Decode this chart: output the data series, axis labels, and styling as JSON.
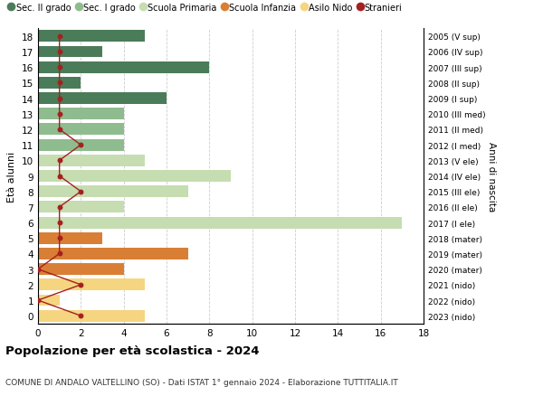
{
  "ages": [
    18,
    17,
    16,
    15,
    14,
    13,
    12,
    11,
    10,
    9,
    8,
    7,
    6,
    5,
    4,
    3,
    2,
    1,
    0
  ],
  "right_labels": [
    "2005 (V sup)",
    "2006 (IV sup)",
    "2007 (III sup)",
    "2008 (II sup)",
    "2009 (I sup)",
    "2010 (III med)",
    "2011 (II med)",
    "2012 (I med)",
    "2013 (V ele)",
    "2014 (IV ele)",
    "2015 (III ele)",
    "2016 (II ele)",
    "2017 (I ele)",
    "2018 (mater)",
    "2019 (mater)",
    "2020 (mater)",
    "2021 (nido)",
    "2022 (nido)",
    "2023 (nido)"
  ],
  "bar_values": [
    5,
    3,
    8,
    2,
    6,
    4,
    4,
    4,
    5,
    9,
    7,
    4,
    17,
    3,
    7,
    4,
    5,
    1,
    5
  ],
  "bar_colors": [
    "#4a7c59",
    "#4a7c59",
    "#4a7c59",
    "#4a7c59",
    "#4a7c59",
    "#8fbc8f",
    "#8fbc8f",
    "#8fbc8f",
    "#c5ddb0",
    "#c5ddb0",
    "#c5ddb0",
    "#c5ddb0",
    "#c5ddb0",
    "#d97f35",
    "#d97f35",
    "#d97f35",
    "#f5d580",
    "#f5d580",
    "#f5d580"
  ],
  "stranieri_values": [
    1,
    1,
    1,
    1,
    1,
    1,
    1,
    2,
    1,
    1,
    2,
    1,
    1,
    1,
    1,
    0,
    2,
    0,
    2
  ],
  "stranieri_color": "#a52020",
  "legend_labels": [
    "Sec. II grado",
    "Sec. I grado",
    "Scuola Primaria",
    "Scuola Infanzia",
    "Asilo Nido",
    "Stranieri"
  ],
  "legend_colors": [
    "#4a7c59",
    "#8fbc8f",
    "#c5ddb0",
    "#d97f35",
    "#f5d580",
    "#a52020"
  ],
  "title": "Popolazione per età scolastica - 2024",
  "subtitle": "COMUNE DI ANDALO VALTELLINO (SO) - Dati ISTAT 1° gennaio 2024 - Elaborazione TUTTITALIA.IT",
  "ylabel": "Età alunni",
  "right_ylabel": "Anni di nascita",
  "xlabel_vals": [
    0,
    2,
    4,
    6,
    8,
    10,
    12,
    14,
    16,
    18
  ],
  "xlim": [
    0,
    18
  ],
  "ylim": [
    -0.5,
    18.5
  ],
  "background_color": "#ffffff",
  "grid_color": "#cccccc",
  "bar_height": 0.75
}
